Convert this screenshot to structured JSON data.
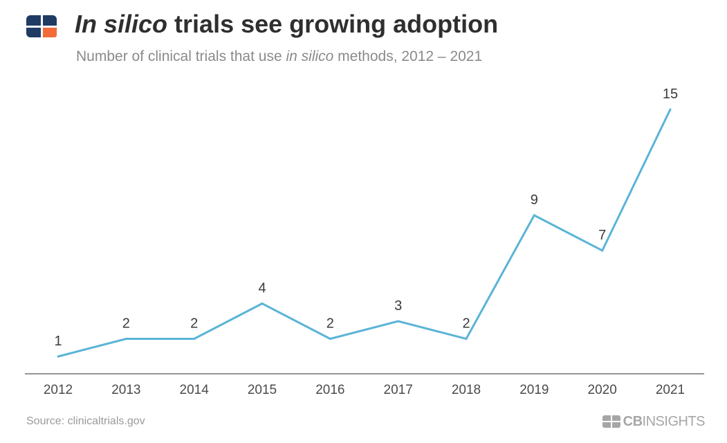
{
  "header": {
    "title_italic": "In silico",
    "title_rest": " trials see growing adoption",
    "subtitle_pre": "Number of clinical trials that use ",
    "subtitle_italic": "in silico",
    "subtitle_post": " methods, 2012 – 2021"
  },
  "footer": {
    "source": "Source: clinicaltrials.gov",
    "brand_bold": "CB",
    "brand_rest": "INSIGHTS"
  },
  "colors": {
    "line": "#5ab4d6",
    "logo_navy": "#1f3b64",
    "logo_orange": "#f26c3a",
    "axis": "#555555"
  },
  "chart_data": {
    "type": "line",
    "title": "In silico trials see growing adoption",
    "subtitle": "Number of clinical trials that use in silico methods, 2012 – 2021",
    "categories": [
      "2012",
      "2013",
      "2014",
      "2015",
      "2016",
      "2017",
      "2018",
      "2019",
      "2020",
      "2021"
    ],
    "values": [
      1,
      2,
      2,
      4,
      2,
      3,
      2,
      9,
      7,
      15
    ],
    "xlabel": "",
    "ylabel": "",
    "ylim": [
      0,
      15
    ],
    "grid": false,
    "data_labels": true
  }
}
